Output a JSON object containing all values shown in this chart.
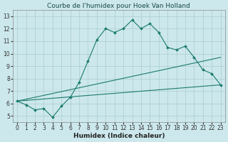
{
  "title": "Courbe de l'humidex pour Hoek Van Holland",
  "xlabel": "Humidex (Indice chaleur)",
  "background_color": "#cce8ec",
  "grid_color": "#aacccc",
  "line_color": "#1a7a6e",
  "xlim": [
    -0.5,
    23.5
  ],
  "ylim": [
    4.5,
    13.5
  ],
  "xticks": [
    0,
    1,
    2,
    3,
    4,
    5,
    6,
    7,
    8,
    9,
    10,
    11,
    12,
    13,
    14,
    15,
    16,
    17,
    18,
    19,
    20,
    21,
    22,
    23
  ],
  "yticks": [
    5,
    6,
    7,
    8,
    9,
    10,
    11,
    12,
    13
  ],
  "line1_x": [
    0,
    1,
    2,
    3,
    4,
    5,
    6,
    7,
    8,
    9,
    10,
    11,
    12,
    13,
    14,
    15,
    16,
    17,
    18,
    19,
    20,
    21,
    22,
    23
  ],
  "line1_y": [
    6.2,
    5.9,
    5.5,
    5.6,
    4.9,
    5.8,
    6.5,
    7.7,
    9.4,
    11.1,
    12.0,
    11.7,
    12.0,
    12.7,
    12.0,
    12.4,
    11.7,
    10.5,
    10.3,
    10.6,
    9.7,
    8.7,
    8.4,
    7.5
  ],
  "line2_x": [
    0,
    23
  ],
  "line2_y": [
    6.2,
    9.7
  ],
  "line3_x": [
    0,
    23
  ],
  "line3_y": [
    6.2,
    7.5
  ],
  "title_fontsize": 6.5,
  "label_fontsize": 6.5,
  "tick_fontsize": 5.5
}
